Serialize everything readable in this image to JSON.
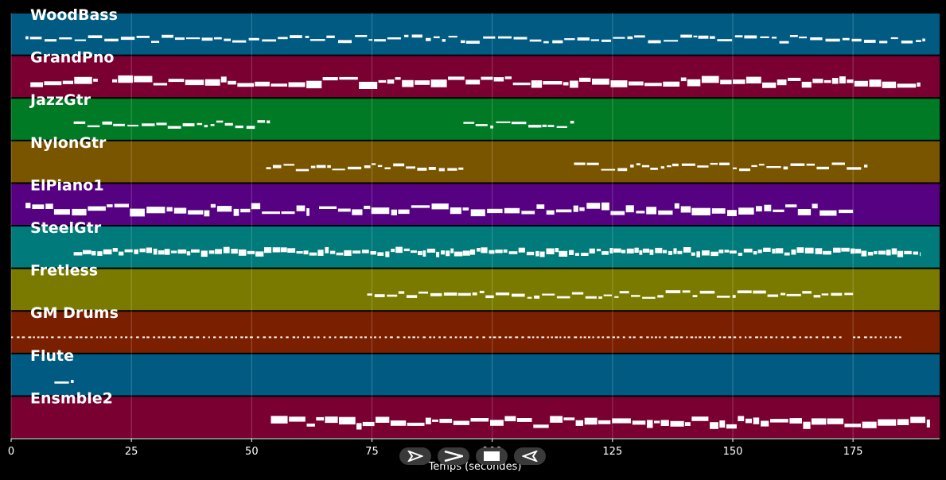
{
  "chart_data": {
    "type": "piano-roll",
    "xlabel": "Temps (secondes)",
    "xlim": [
      0,
      193
    ],
    "xticks": [
      0,
      25,
      50,
      75,
      100,
      125,
      150,
      175
    ],
    "tracks": [
      {
        "name": "WoodBass",
        "color": "#005a82",
        "segments": [
          [
            3,
            190
          ]
        ],
        "density": 0.55,
        "style": "line"
      },
      {
        "name": "GrandPno",
        "color": "#7a0032",
        "segments": [
          [
            4,
            18
          ],
          [
            21,
            189
          ]
        ],
        "density": 0.9,
        "style": "block"
      },
      {
        "name": "JazzGtr",
        "color": "#007a24",
        "segments": [
          [
            13,
            54
          ],
          [
            94,
            117
          ]
        ],
        "density": 0.6,
        "style": "line"
      },
      {
        "name": "NylonGtr",
        "color": "#7a5500",
        "segments": [
          [
            53,
            94
          ],
          [
            117,
            178
          ]
        ],
        "density": 0.6,
        "style": "line"
      },
      {
        "name": "ElPiano1",
        "color": "#560082",
        "segments": [
          [
            3,
            62
          ],
          [
            64,
            175
          ]
        ],
        "density": 0.7,
        "style": "block"
      },
      {
        "name": "SteelGtr",
        "color": "#007a7a",
        "segments": [
          [
            13,
            189
          ]
        ],
        "density": 0.95,
        "style": "dense"
      },
      {
        "name": "Fretless",
        "color": "#7a7a00",
        "segments": [
          [
            74,
            175
          ]
        ],
        "density": 0.7,
        "style": "line"
      },
      {
        "name": "GM Drums",
        "color": "#7a2000",
        "segments": [
          [
            0,
            173
          ],
          [
            175,
            185
          ]
        ],
        "density": 0.95,
        "style": "drums"
      },
      {
        "name": "Flute",
        "color": "#005a82",
        "segments": [
          [
            9,
            13
          ]
        ],
        "density": 0.8,
        "style": "line"
      },
      {
        "name": "Ensmble2",
        "color": "#7a0032",
        "segments": [
          [
            54,
            191
          ]
        ],
        "density": 0.85,
        "style": "block"
      }
    ]
  },
  "controls": [
    {
      "name": "play-button",
      "icon": "play-outline-icon"
    },
    {
      "name": "forward-button",
      "icon": "chevron-right-icon"
    },
    {
      "name": "stop-button",
      "icon": "stop-icon"
    },
    {
      "name": "rewind-button",
      "icon": "rewind-icon"
    }
  ]
}
